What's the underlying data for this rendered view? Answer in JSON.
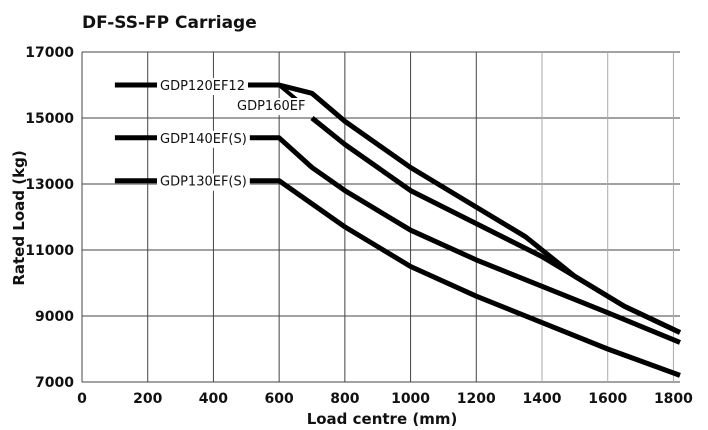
{
  "chart_data": {
    "type": "line",
    "title": "DF-SS-FP Carriage",
    "xlabel": "Load centre (mm)",
    "ylabel": "Rated Load (kg)",
    "xlim": [
      0,
      1820
    ],
    "ylim": [
      7000,
      17000
    ],
    "x_ticks": [
      0,
      200,
      400,
      600,
      800,
      1000,
      1200,
      1400,
      1600,
      1800
    ],
    "y_ticks": [
      7000,
      9000,
      11000,
      13000,
      15000,
      17000
    ],
    "grid": true,
    "series": [
      {
        "name": "GDP120EF12",
        "points": [
          [
            100,
            16000
          ],
          [
            600,
            16000
          ],
          [
            700,
            15750
          ],
          [
            800,
            14900
          ],
          [
            1000,
            13500
          ],
          [
            1200,
            12300
          ],
          [
            1350,
            11400
          ],
          [
            1500,
            10200
          ],
          [
            1650,
            9300
          ],
          [
            1820,
            8500
          ]
        ]
      },
      {
        "name": "GDP160EF",
        "points": [
          [
            700,
            15000
          ],
          [
            800,
            14200
          ],
          [
            1000,
            12800
          ],
          [
            1200,
            11800
          ],
          [
            1400,
            10800
          ],
          [
            1500,
            10200
          ],
          [
            1650,
            9300
          ],
          [
            1820,
            8500
          ]
        ]
      },
      {
        "name": "GDP140EF(S)",
        "points": [
          [
            100,
            14400
          ],
          [
            600,
            14400
          ],
          [
            700,
            13500
          ],
          [
            800,
            12800
          ],
          [
            1000,
            11600
          ],
          [
            1200,
            10700
          ],
          [
            1400,
            9900
          ],
          [
            1600,
            9100
          ],
          [
            1820,
            8200
          ]
        ]
      },
      {
        "name": "GDP130EF(S)",
        "points": [
          [
            100,
            13100
          ],
          [
            600,
            13100
          ],
          [
            700,
            12400
          ],
          [
            800,
            11700
          ],
          [
            1000,
            10500
          ],
          [
            1200,
            9600
          ],
          [
            1400,
            8800
          ],
          [
            1600,
            8000
          ],
          [
            1820,
            7200
          ]
        ]
      }
    ]
  }
}
